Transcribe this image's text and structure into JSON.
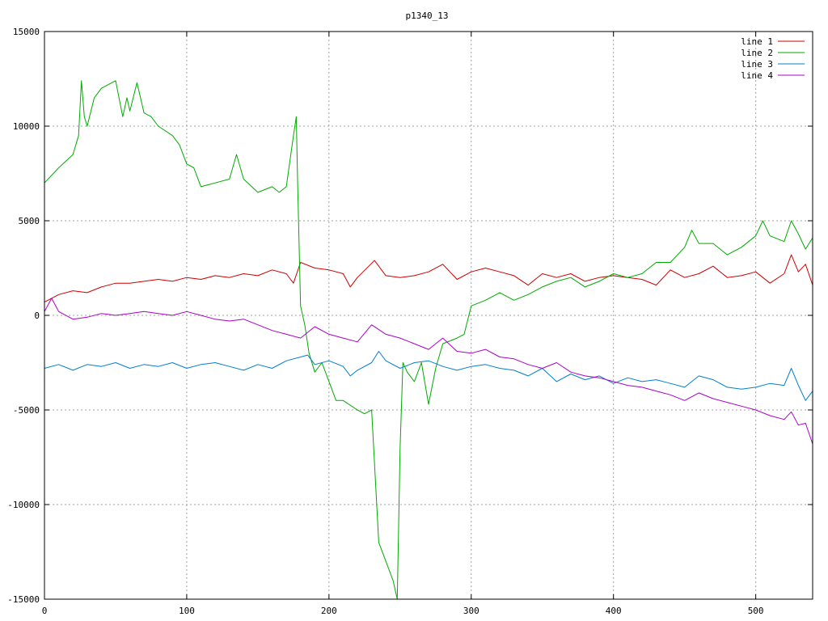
{
  "chart_data": {
    "type": "line",
    "title": "p1340_13",
    "xlabel": "",
    "ylabel": "",
    "xlim": [
      0,
      540
    ],
    "ylim": [
      -15000,
      15000
    ],
    "x_ticks": [
      0,
      100,
      200,
      300,
      400,
      500
    ],
    "y_ticks": [
      -15000,
      -10000,
      -5000,
      0,
      5000,
      10000,
      15000
    ],
    "grid": true,
    "legend_position": "top-right",
    "series": [
      {
        "name": "line 1",
        "color": "#cc0000",
        "x": [
          0,
          10,
          20,
          30,
          40,
          50,
          60,
          70,
          80,
          90,
          100,
          110,
          120,
          130,
          140,
          150,
          160,
          170,
          175,
          180,
          190,
          200,
          210,
          215,
          220,
          228,
          232,
          240,
          250,
          260,
          270,
          280,
          290,
          300,
          310,
          320,
          330,
          340,
          350,
          360,
          370,
          380,
          390,
          400,
          410,
          420,
          430,
          440,
          450,
          460,
          470,
          480,
          490,
          500,
          510,
          520,
          525,
          530,
          535,
          540
        ],
        "values": [
          700,
          1100,
          1300,
          1200,
          1500,
          1700,
          1700,
          1800,
          1900,
          1800,
          2000,
          1900,
          2100,
          2000,
          2200,
          2100,
          2400,
          2200,
          1700,
          2800,
          2500,
          2400,
          2200,
          1500,
          2000,
          2600,
          2900,
          2100,
          2000,
          2100,
          2300,
          2700,
          1900,
          2300,
          2500,
          2300,
          2100,
          1600,
          2200,
          2000,
          2200,
          1800,
          2000,
          2100,
          2000,
          1900,
          1600,
          2400,
          2000,
          2200,
          2600,
          2000,
          2100,
          2300,
          1700,
          2200,
          3200,
          2300,
          2700,
          1600
        ]
      },
      {
        "name": "line 2",
        "color": "#00aa00",
        "x": [
          0,
          10,
          20,
          24,
          26,
          28,
          30,
          35,
          40,
          50,
          55,
          58,
          60,
          65,
          70,
          75,
          80,
          90,
          95,
          100,
          105,
          110,
          120,
          130,
          135,
          140,
          150,
          160,
          165,
          170,
          175,
          177,
          178,
          180,
          183,
          186,
          190,
          195,
          200,
          205,
          210,
          220,
          225,
          230,
          235,
          240,
          245,
          248,
          250,
          252,
          255,
          260,
          265,
          270,
          275,
          280,
          290,
          295,
          300,
          310,
          320,
          330,
          340,
          350,
          360,
          370,
          380,
          390,
          400,
          410,
          420,
          430,
          440,
          450,
          455,
          460,
          470,
          480,
          490,
          500,
          505,
          510,
          520,
          525,
          530,
          535,
          540
        ],
        "values": [
          7000,
          7800,
          8500,
          9500,
          12400,
          10500,
          10000,
          11500,
          12000,
          12400,
          10500,
          11500,
          10800,
          12300,
          10700,
          10500,
          10000,
          9500,
          9000,
          8000,
          7800,
          6800,
          7000,
          7200,
          8500,
          7200,
          6500,
          6800,
          6500,
          6800,
          9500,
          10500,
          7000,
          500,
          -500,
          -2000,
          -3000,
          -2500,
          -3500,
          -4500,
          -4500,
          -5000,
          -5200,
          -5000,
          -12000,
          -13000,
          -14000,
          -15000,
          -7000,
          -2500,
          -3000,
          -3500,
          -2500,
          -4700,
          -2800,
          -1500,
          -1200,
          -1000,
          500,
          800,
          1200,
          800,
          1100,
          1500,
          1800,
          2000,
          1500,
          1800,
          2200,
          2000,
          2200,
          2800,
          2800,
          3600,
          4500,
          3800,
          3800,
          3200,
          3600,
          4200,
          5000,
          4200,
          3900,
          5000,
          4300,
          3500,
          4100
        ]
      },
      {
        "name": "line 3",
        "color": "#0080cc",
        "x": [
          0,
          10,
          20,
          30,
          40,
          50,
          60,
          70,
          80,
          90,
          100,
          110,
          120,
          130,
          140,
          150,
          160,
          170,
          180,
          185,
          190,
          200,
          210,
          215,
          220,
          230,
          235,
          240,
          250,
          260,
          270,
          280,
          290,
          300,
          310,
          320,
          330,
          340,
          350,
          360,
          370,
          380,
          390,
          400,
          410,
          420,
          430,
          440,
          450,
          460,
          470,
          480,
          490,
          500,
          510,
          520,
          525,
          530,
          535,
          540
        ],
        "values": [
          -2800,
          -2600,
          -2900,
          -2600,
          -2700,
          -2500,
          -2800,
          -2600,
          -2700,
          -2500,
          -2800,
          -2600,
          -2500,
          -2700,
          -2900,
          -2600,
          -2800,
          -2400,
          -2200,
          -2100,
          -2600,
          -2400,
          -2700,
          -3200,
          -2900,
          -2500,
          -1900,
          -2400,
          -2800,
          -2500,
          -2400,
          -2700,
          -2900,
          -2700,
          -2600,
          -2800,
          -2900,
          -3200,
          -2800,
          -3500,
          -3100,
          -3400,
          -3200,
          -3600,
          -3300,
          -3500,
          -3400,
          -3600,
          -3800,
          -3200,
          -3400,
          -3800,
          -3900,
          -3800,
          -3600,
          -3700,
          -2800,
          -3700,
          -4500,
          -4000
        ]
      },
      {
        "name": "line 4",
        "color": "#aa00cc",
        "x": [
          0,
          5,
          10,
          20,
          30,
          40,
          50,
          60,
          70,
          80,
          90,
          100,
          110,
          120,
          130,
          140,
          150,
          160,
          170,
          180,
          190,
          200,
          210,
          220,
          230,
          240,
          250,
          260,
          270,
          280,
          290,
          300,
          310,
          320,
          330,
          340,
          350,
          360,
          370,
          380,
          390,
          400,
          410,
          420,
          430,
          440,
          450,
          460,
          470,
          480,
          490,
          500,
          510,
          520,
          525,
          530,
          535,
          540
        ],
        "values": [
          200,
          900,
          200,
          -200,
          -100,
          100,
          0,
          100,
          200,
          100,
          0,
          200,
          0,
          -200,
          -300,
          -200,
          -500,
          -800,
          -1000,
          -1200,
          -600,
          -1000,
          -1200,
          -1400,
          -500,
          -1000,
          -1200,
          -1500,
          -1800,
          -1200,
          -1900,
          -2000,
          -1800,
          -2200,
          -2300,
          -2600,
          -2800,
          -2500,
          -3000,
          -3200,
          -3300,
          -3500,
          -3700,
          -3800,
          -4000,
          -4200,
          -4500,
          -4100,
          -4400,
          -4600,
          -4800,
          -5000,
          -5300,
          -5500,
          -5100,
          -5800,
          -5700,
          -6800
        ]
      }
    ]
  }
}
